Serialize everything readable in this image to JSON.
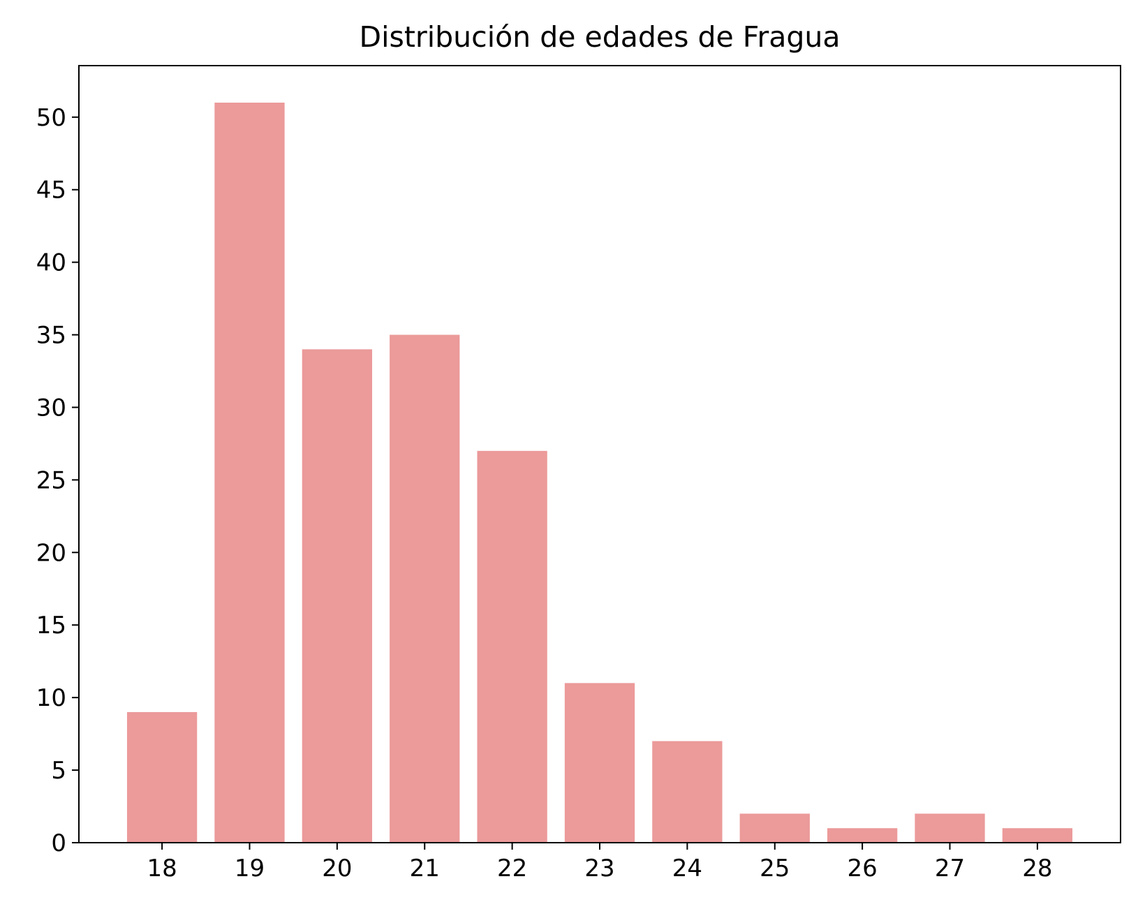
{
  "chart_data": {
    "type": "bar",
    "title": "Distribución de edades de Fragua",
    "xlabel": "",
    "ylabel": "",
    "categories": [
      "18",
      "19",
      "20",
      "21",
      "22",
      "23",
      "24",
      "25",
      "26",
      "27",
      "28"
    ],
    "values": [
      9,
      51,
      34,
      35,
      27,
      11,
      7,
      2,
      1,
      2,
      1
    ],
    "yticks": [
      0,
      5,
      10,
      15,
      20,
      25,
      30,
      35,
      40,
      45,
      50
    ],
    "ylim": [
      0,
      53.55
    ],
    "grid": false,
    "legend": "none",
    "bar_color": "#ec9a9a"
  }
}
